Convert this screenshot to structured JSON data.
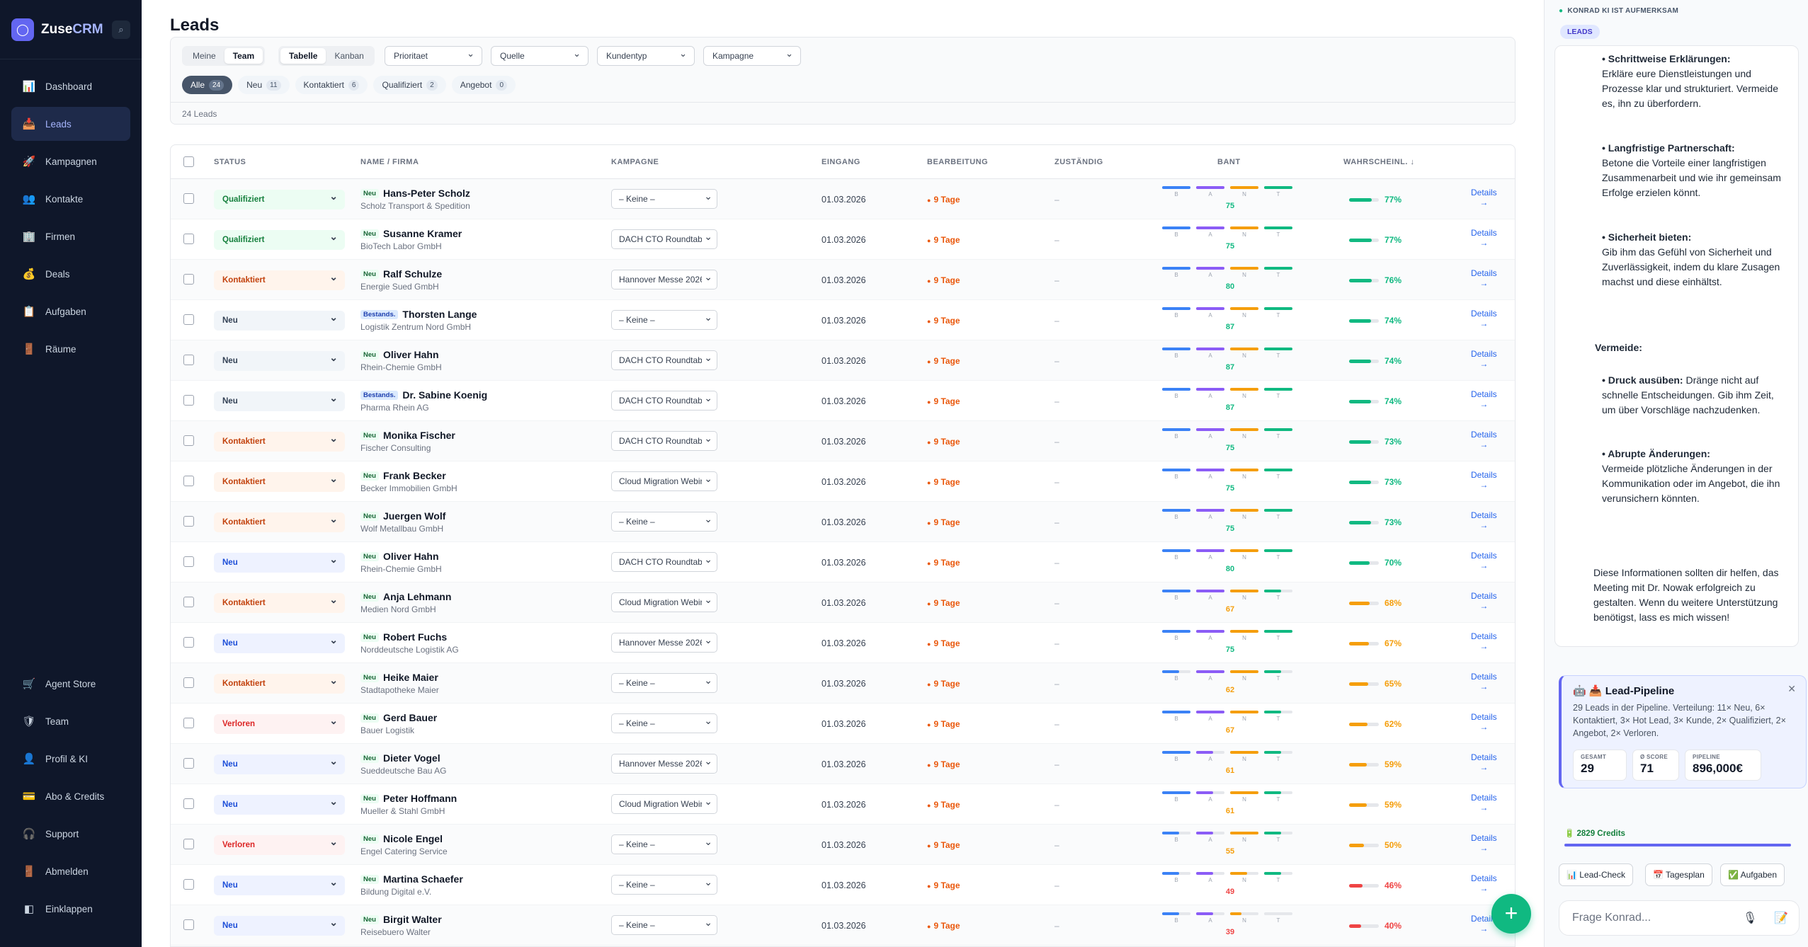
{
  "app": {
    "name_main": "Zuse",
    "name_accent": "CRM"
  },
  "nav": [
    {
      "label": "Dashboard",
      "icon": "📊",
      "name": "dashboard"
    },
    {
      "label": "Leads",
      "icon": "📥",
      "name": "leads"
    },
    {
      "label": "Kampagnen",
      "icon": "🚀",
      "name": "kampagnen"
    },
    {
      "label": "Kontakte",
      "icon": "👥",
      "name": "kontakte"
    },
    {
      "label": "Firmen",
      "icon": "🏢",
      "name": "firmen"
    },
    {
      "label": "Deals",
      "icon": "💰",
      "name": "deals"
    },
    {
      "label": "Aufgaben",
      "icon": "📋",
      "name": "aufgaben"
    },
    {
      "label": "Räume",
      "icon": "🚪",
      "name": "raeume"
    }
  ],
  "nav_bottom": [
    {
      "label": "Agent Store",
      "icon": "🛒",
      "name": "agent-store"
    },
    {
      "label": "Team",
      "icon": "🛡",
      "name": "team"
    },
    {
      "label": "Profil & KI",
      "icon": "👤",
      "name": "profil"
    },
    {
      "label": "Abo & Credits",
      "icon": "💳",
      "name": "abo"
    },
    {
      "label": "Support",
      "icon": "🎧",
      "name": "support"
    },
    {
      "label": "Abmelden",
      "icon": "🚪",
      "name": "abmelden"
    },
    {
      "label": "Einklappen",
      "icon": "◧",
      "name": "einklappen"
    }
  ],
  "page": {
    "title": "Leads",
    "count_text": "24 Leads"
  },
  "filters": {
    "scope": [
      "Meine",
      "Team"
    ],
    "view": [
      "Tabelle",
      "Kanban"
    ],
    "selects": [
      "Prioritaet",
      "Quelle",
      "Kundentyp",
      "Kampagne"
    ],
    "chips": [
      {
        "label": "Alle",
        "count": "24"
      },
      {
        "label": "Neu",
        "count": "11"
      },
      {
        "label": "Kontaktiert",
        "count": "6"
      },
      {
        "label": "Qualifiziert",
        "count": "2"
      },
      {
        "label": "Angebot",
        "count": "0"
      }
    ]
  },
  "columns": {
    "status": "STATUS",
    "name": "NAME / FIRMA",
    "kampagne": "KAMPAGNE",
    "eingang": "EINGANG",
    "bearbeitung": "BEARBEITUNG",
    "zustaendig": "ZUSTÄNDIG",
    "bant": "BANT",
    "prob": "WAHRSCHEINL. ↓"
  },
  "bant_letters": [
    "B",
    "A",
    "N",
    "T"
  ],
  "colors": {
    "bant_b": "#3b82f6",
    "bant_a": "#8b5cf6",
    "bant_n": "#f59e0b",
    "bant_t": "#10b981",
    "high": "#10b981",
    "mid": "#f59e0b",
    "low": "#ef4444"
  },
  "details_label": "Details",
  "details_arrow": "→",
  "rows": [
    {
      "status": "Qualifiziert",
      "st": "qual",
      "badge": "Neu",
      "name": "Hans-Peter Scholz",
      "firm": "Scholz Transport & Spedition",
      "camp": "– Keine –",
      "date": "01.03.2026",
      "bearb": "9 Tage",
      "zust": "–",
      "bant": [
        25,
        25,
        25,
        25
      ],
      "score": "75",
      "prob": "77%",
      "pv": 77
    },
    {
      "status": "Qualifiziert",
      "st": "qual",
      "badge": "Neu",
      "name": "Susanne Kramer",
      "firm": "BioTech Labor GmbH",
      "camp": "DACH CTO Roundtable",
      "date": "01.03.2026",
      "bearb": "9 Tage",
      "zust": "–",
      "bant": [
        25,
        25,
        25,
        25
      ],
      "score": "75",
      "prob": "77%",
      "pv": 77
    },
    {
      "status": "Kontaktiert",
      "st": "kont",
      "badge": "Neu",
      "name": "Ralf Schulze",
      "firm": "Energie Sued GmbH",
      "camp": "Hannover Messe 2026",
      "date": "01.03.2026",
      "bearb": "9 Tage",
      "zust": "–",
      "bant": [
        25,
        25,
        25,
        25
      ],
      "score": "80",
      "prob": "76%",
      "pv": 76
    },
    {
      "status": "Neu",
      "st": "neugray",
      "badge": "Bestands.",
      "name": "Thorsten Lange",
      "firm": "Logistik Zentrum Nord GmbH",
      "camp": "– Keine –",
      "date": "01.03.2026",
      "bearb": "9 Tage",
      "zust": "–",
      "bant": [
        25,
        25,
        25,
        25
      ],
      "score": "87",
      "prob": "74%",
      "pv": 74
    },
    {
      "status": "Neu",
      "st": "neugray",
      "badge": "Neu",
      "name": "Oliver Hahn",
      "firm": "Rhein-Chemie GmbH",
      "camp": "DACH CTO Roundtable",
      "date": "01.03.2026",
      "bearb": "9 Tage",
      "zust": "–",
      "bant": [
        25,
        25,
        25,
        25
      ],
      "score": "87",
      "prob": "74%",
      "pv": 74
    },
    {
      "status": "Neu",
      "st": "neugray",
      "badge": "Bestands.",
      "name": "Dr. Sabine Koenig",
      "firm": "Pharma Rhein AG",
      "camp": "DACH CTO Roundtable",
      "date": "01.03.2026",
      "bearb": "9 Tage",
      "zust": "–",
      "bant": [
        25,
        25,
        25,
        25
      ],
      "score": "87",
      "prob": "74%",
      "pv": 74
    },
    {
      "status": "Kontaktiert",
      "st": "kont",
      "badge": "Neu",
      "name": "Monika Fischer",
      "firm": "Fischer Consulting",
      "camp": "DACH CTO Roundtable",
      "date": "01.03.2026",
      "bearb": "9 Tage",
      "zust": "–",
      "bant": [
        25,
        25,
        25,
        25
      ],
      "score": "75",
      "prob": "73%",
      "pv": 73
    },
    {
      "status": "Kontaktiert",
      "st": "kont",
      "badge": "Neu",
      "name": "Frank Becker",
      "firm": "Becker Immobilien GmbH",
      "camp": "Cloud Migration Webinar",
      "date": "01.03.2026",
      "bearb": "9 Tage",
      "zust": "–",
      "bant": [
        25,
        25,
        25,
        25
      ],
      "score": "75",
      "prob": "73%",
      "pv": 73
    },
    {
      "status": "Kontaktiert",
      "st": "kont",
      "badge": "Neu",
      "name": "Juergen Wolf",
      "firm": "Wolf Metallbau GmbH",
      "camp": "– Keine –",
      "date": "01.03.2026",
      "bearb": "9 Tage",
      "zust": "–",
      "bant": [
        25,
        25,
        25,
        25
      ],
      "score": "75",
      "prob": "73%",
      "pv": 73
    },
    {
      "status": "Neu",
      "st": "neu",
      "badge": "Neu",
      "name": "Oliver Hahn",
      "firm": "Rhein-Chemie GmbH",
      "camp": "DACH CTO Roundtable",
      "date": "01.03.2026",
      "bearb": "9 Tage",
      "zust": "–",
      "bant": [
        25,
        25,
        25,
        25
      ],
      "score": "80",
      "prob": "70%",
      "pv": 70
    },
    {
      "status": "Kontaktiert",
      "st": "kont",
      "badge": "Neu",
      "name": "Anja Lehmann",
      "firm": "Medien Nord GmbH",
      "camp": "Cloud Migration Webinar",
      "date": "01.03.2026",
      "bearb": "9 Tage",
      "zust": "–",
      "bant": [
        25,
        25,
        25,
        15
      ],
      "score": "67",
      "prob": "68%",
      "pv": 68
    },
    {
      "status": "Neu",
      "st": "neu",
      "badge": "Neu",
      "name": "Robert Fuchs",
      "firm": "Norddeutsche Logistik AG",
      "camp": "Hannover Messe 2026",
      "date": "01.03.2026",
      "bearb": "9 Tage",
      "zust": "–",
      "bant": [
        25,
        25,
        25,
        25
      ],
      "score": "75",
      "prob": "67%",
      "pv": 67
    },
    {
      "status": "Kontaktiert",
      "st": "kont",
      "badge": "Neu",
      "name": "Heike Maier",
      "firm": "Stadtapotheke Maier",
      "camp": "– Keine –",
      "date": "01.03.2026",
      "bearb": "9 Tage",
      "zust": "–",
      "bant": [
        15,
        25,
        25,
        15
      ],
      "score": "62",
      "prob": "65%",
      "pv": 65
    },
    {
      "status": "Verloren",
      "st": "verl",
      "badge": "Neu",
      "name": "Gerd Bauer",
      "firm": "Bauer Logistik",
      "camp": "– Keine –",
      "date": "01.03.2026",
      "bearb": "9 Tage",
      "zust": "–",
      "bant": [
        25,
        25,
        25,
        15
      ],
      "score": "67",
      "prob": "62%",
      "pv": 62
    },
    {
      "status": "Neu",
      "st": "neu",
      "badge": "Neu",
      "name": "Dieter Vogel",
      "firm": "Sueddeutsche Bau AG",
      "camp": "Hannover Messe 2026",
      "date": "01.03.2026",
      "bearb": "9 Tage",
      "zust": "–",
      "bant": [
        25,
        15,
        25,
        15
      ],
      "score": "61",
      "prob": "59%",
      "pv": 59
    },
    {
      "status": "Neu",
      "st": "neu",
      "badge": "Neu",
      "name": "Peter Hoffmann",
      "firm": "Mueller & Stahl GmbH",
      "camp": "Cloud Migration Webinar",
      "date": "01.03.2026",
      "bearb": "9 Tage",
      "zust": "–",
      "bant": [
        25,
        15,
        25,
        15
      ],
      "score": "61",
      "prob": "59%",
      "pv": 59
    },
    {
      "status": "Verloren",
      "st": "verl",
      "badge": "Neu",
      "name": "Nicole Engel",
      "firm": "Engel Catering Service",
      "camp": "– Keine –",
      "date": "01.03.2026",
      "bearb": "9 Tage",
      "zust": "–",
      "bant": [
        15,
        15,
        25,
        15
      ],
      "score": "55",
      "prob": "50%",
      "pv": 50
    },
    {
      "status": "Neu",
      "st": "neu",
      "badge": "Neu",
      "name": "Martina Schaefer",
      "firm": "Bildung Digital e.V.",
      "camp": "– Keine –",
      "date": "01.03.2026",
      "bearb": "9 Tage",
      "zust": "–",
      "bant": [
        15,
        15,
        15,
        15
      ],
      "score": "49",
      "prob": "46%",
      "pv": 46
    },
    {
      "status": "Neu",
      "st": "neu",
      "badge": "Neu",
      "name": "Birgit Walter",
      "firm": "Reisebuero Walter",
      "camp": "– Keine –",
      "date": "01.03.2026",
      "bearb": "9 Tage",
      "zust": "–",
      "bant": [
        15,
        15,
        10,
        0
      ],
      "score": "39",
      "prob": "40%",
      "pv": 40
    }
  ],
  "konrad": {
    "status": "KONRAD KI IST AUFMERKSAM",
    "context_tag": "LEADS",
    "message": {
      "b1_title": "• Schrittweise Erklärungen:",
      "b1_text": "Erkläre eure Dienstleistungen und Prozesse klar und strukturiert. Vermeide es, ihn zu überfordern.",
      "b2_title": "• Langfristige Partnerschaft:",
      "b2_text": "Betone die Vorteile einer langfristigen Zusammenarbeit und wie ihr gemeinsam Erfolge erzielen könnt.",
      "b3_title": "• Sicherheit bieten:",
      "b3_text": "Gib ihm das Gefühl von Sicherheit und Zuverlässigkeit, indem du klare Zusagen machst und diese einhältst.",
      "avoid_title": "Vermeide:",
      "b4_title": "• Druck ausüben:",
      "b4_text": "Dränge nicht auf schnelle Entscheidungen. Gib ihm Zeit, um über Vorschläge nachzudenken.",
      "b5_title": "• Abrupte Änderungen:",
      "b5_text": "Vermeide plötzliche Änderungen in der Kommunikation oder im Angebot, die ihn verunsichern könnten.",
      "closing": "Diese Informationen sollten dir helfen, das Meeting mit Dr. Nowak erfolgreich zu gestalten. Wenn du weitere Unterstützung benötigst, lass es mich wissen!"
    },
    "pipeline": {
      "title": "📥 Lead-Pipeline",
      "desc": "29 Leads in der Pipeline. Verteilung: 11× Neu, 6× Kontaktiert, 3× Hot Lead, 3× Kunde, 2× Qualifiziert, 2× Angebot, 2× Verloren.",
      "kpis": [
        {
          "label": "GESAMT",
          "value": "29"
        },
        {
          "label": "Ø SCORE",
          "value": "71"
        },
        {
          "label": "PIPELINE",
          "value": "896,000€"
        }
      ]
    },
    "credits": "2829 Credits",
    "quick_actions": [
      "📊 Lead-Check",
      "📅 Tagesplan",
      "✅ Aufgaben"
    ],
    "input_placeholder": "Frage Konrad..."
  }
}
